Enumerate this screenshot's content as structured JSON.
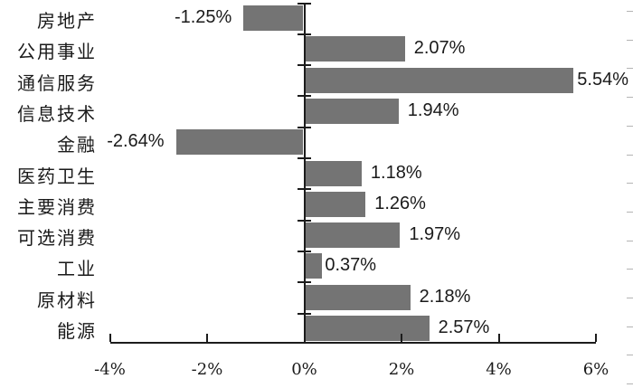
{
  "chart_data": {
    "type": "bar",
    "orientation": "horizontal",
    "title": "",
    "xlabel": "",
    "ylabel": "",
    "categories": [
      "房地产",
      "公用事业",
      "通信服务",
      "信息技术",
      "金融",
      "医药卫生",
      "主要消费",
      "可选消费",
      "工业",
      "原材料",
      "能源"
    ],
    "values": [
      -1.25,
      2.07,
      5.54,
      1.94,
      -2.64,
      1.18,
      1.26,
      1.97,
      0.37,
      2.18,
      2.57
    ],
    "value_labels": [
      "-1.25%",
      "2.07%",
      "5.54%",
      "1.94%",
      "-2.64%",
      "1.18%",
      "1.26%",
      "1.97%",
      "0.37%",
      "2.18%",
      "2.57%"
    ],
    "x_tick_labels": [
      "-4%",
      "-2%",
      "0%",
      "2%",
      "4%",
      "6%"
    ],
    "x_tick_values": [
      -4,
      -2,
      0,
      2,
      4,
      6
    ],
    "xlim": [
      -4,
      6
    ],
    "grid": false,
    "legend": "none",
    "colors": {
      "bar": "#747474",
      "axis": "#1c1c1c",
      "text": "#1a1a1a",
      "minor_tick": "#b4b4b4",
      "background": "#ffffff"
    }
  }
}
